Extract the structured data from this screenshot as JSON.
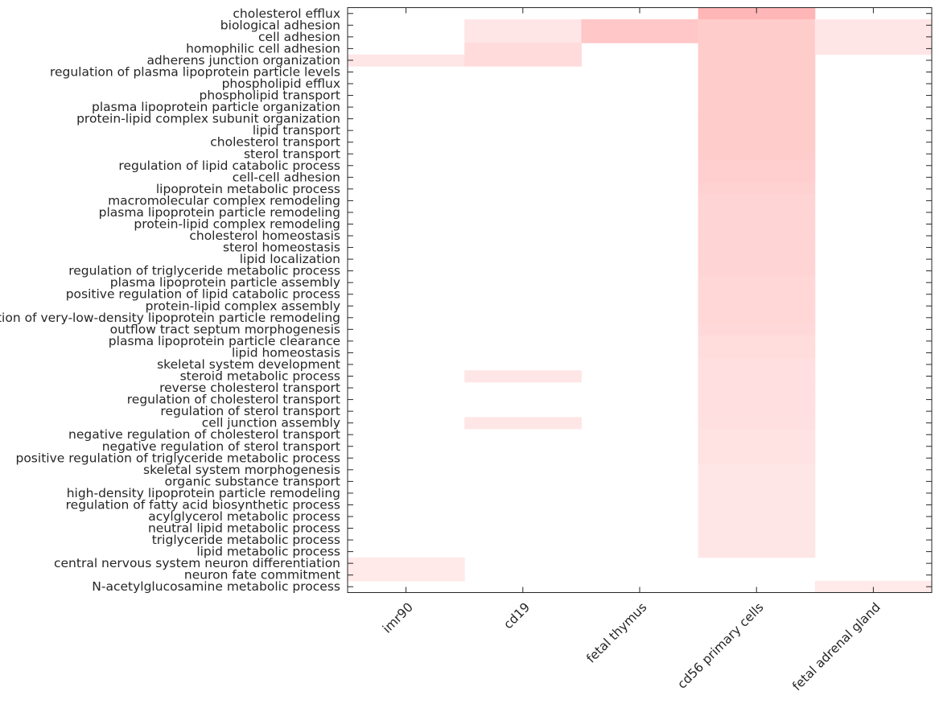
{
  "chart_data": {
    "type": "heatmap",
    "title": "",
    "xlabel": "",
    "ylabel": "",
    "grid": false,
    "color_low": "#ffffff",
    "color_high": "#ff9999",
    "x": [
      "imr90",
      "cd19",
      "fetal thymus",
      "cd56 primary cells",
      "fetal adrenal gland"
    ],
    "y": [
      "cholesterol efflux",
      "biological adhesion",
      "cell adhesion",
      "homophilic cell adhesion",
      "adherens junction organization",
      "regulation of plasma lipoprotein particle levels",
      "phospholipid efflux",
      "phospholipid transport",
      "plasma lipoprotein particle organization",
      "protein-lipid complex subunit organization",
      "lipid transport",
      "cholesterol transport",
      "sterol transport",
      "regulation of lipid catabolic process",
      "cell-cell adhesion",
      "lipoprotein metabolic process",
      "macromolecular complex remodeling",
      "plasma lipoprotein particle remodeling",
      "protein-lipid complex remodeling",
      "cholesterol homeostasis",
      "sterol homeostasis",
      "lipid localization",
      "regulation of triglyceride metabolic process",
      "plasma lipoprotein particle assembly",
      "positive regulation of lipid catabolic process",
      "protein-lipid complex assembly",
      "regulation of very-low-density lipoprotein particle remodeling",
      "outflow tract septum morphogenesis",
      "plasma lipoprotein particle clearance",
      "lipid homeostasis",
      "skeletal system development",
      "steroid metabolic process",
      "reverse cholesterol transport",
      "regulation of cholesterol transport",
      "regulation of sterol transport",
      "cell junction assembly",
      "negative regulation of cholesterol transport",
      "negative regulation of sterol transport",
      "positive regulation of triglyceride metabolic process",
      "skeletal system morphogenesis",
      "organic substance transport",
      "high-density lipoprotein particle remodeling",
      "regulation of fatty acid biosynthetic process",
      "acylglycerol metabolic process",
      "neutral lipid metabolic process",
      "triglyceride metabolic process",
      "lipid metabolic process",
      "central nervous system neuron differentiation",
      "neuron fate commitment",
      "N-acetylglucosamine metabolic process"
    ],
    "values": [
      [
        0,
        0,
        0,
        0.72,
        0
      ],
      [
        0,
        0.25,
        0.55,
        0.5,
        0.25
      ],
      [
        0,
        0.25,
        0.55,
        0.5,
        0.25
      ],
      [
        0,
        0.35,
        0,
        0.5,
        0.25
      ],
      [
        0.25,
        0.35,
        0,
        0.5,
        0
      ],
      [
        0,
        0,
        0,
        0.5,
        0
      ],
      [
        0,
        0,
        0,
        0.5,
        0
      ],
      [
        0,
        0,
        0,
        0.5,
        0
      ],
      [
        0,
        0,
        0,
        0.5,
        0
      ],
      [
        0,
        0,
        0,
        0.5,
        0
      ],
      [
        0,
        0,
        0,
        0.5,
        0
      ],
      [
        0,
        0,
        0,
        0.5,
        0
      ],
      [
        0,
        0,
        0,
        0.5,
        0
      ],
      [
        0,
        0,
        0,
        0.47,
        0
      ],
      [
        0,
        0,
        0,
        0.47,
        0
      ],
      [
        0,
        0,
        0,
        0.44,
        0
      ],
      [
        0,
        0,
        0,
        0.42,
        0
      ],
      [
        0,
        0,
        0,
        0.42,
        0
      ],
      [
        0,
        0,
        0,
        0.42,
        0
      ],
      [
        0,
        0,
        0,
        0.42,
        0
      ],
      [
        0,
        0,
        0,
        0.42,
        0
      ],
      [
        0,
        0,
        0,
        0.42,
        0
      ],
      [
        0,
        0,
        0,
        0.42,
        0
      ],
      [
        0,
        0,
        0,
        0.39,
        0
      ],
      [
        0,
        0,
        0,
        0.39,
        0
      ],
      [
        0,
        0,
        0,
        0.39,
        0
      ],
      [
        0,
        0,
        0,
        0.39,
        0
      ],
      [
        0,
        0,
        0,
        0.37,
        0
      ],
      [
        0,
        0,
        0,
        0.33,
        0
      ],
      [
        0,
        0,
        0,
        0.33,
        0
      ],
      [
        0,
        0,
        0,
        0.31,
        0
      ],
      [
        0,
        0.25,
        0,
        0.31,
        0
      ],
      [
        0,
        0,
        0,
        0.31,
        0
      ],
      [
        0,
        0,
        0,
        0.31,
        0
      ],
      [
        0,
        0,
        0,
        0.31,
        0
      ],
      [
        0,
        0.25,
        0,
        0.3,
        0
      ],
      [
        0,
        0,
        0,
        0.28,
        0
      ],
      [
        0,
        0,
        0,
        0.28,
        0
      ],
      [
        0,
        0,
        0,
        0.28,
        0
      ],
      [
        0,
        0,
        0,
        0.25,
        0
      ],
      [
        0,
        0,
        0,
        0.25,
        0
      ],
      [
        0,
        0,
        0,
        0.25,
        0
      ],
      [
        0,
        0,
        0,
        0.25,
        0
      ],
      [
        0,
        0,
        0,
        0.25,
        0
      ],
      [
        0,
        0,
        0,
        0.25,
        0
      ],
      [
        0,
        0,
        0,
        0.25,
        0
      ],
      [
        0,
        0,
        0,
        0.25,
        0
      ],
      [
        0.22,
        0,
        0,
        0,
        0
      ],
      [
        0.22,
        0,
        0,
        0,
        0
      ],
      [
        0,
        0,
        0,
        0,
        0.22
      ]
    ]
  }
}
